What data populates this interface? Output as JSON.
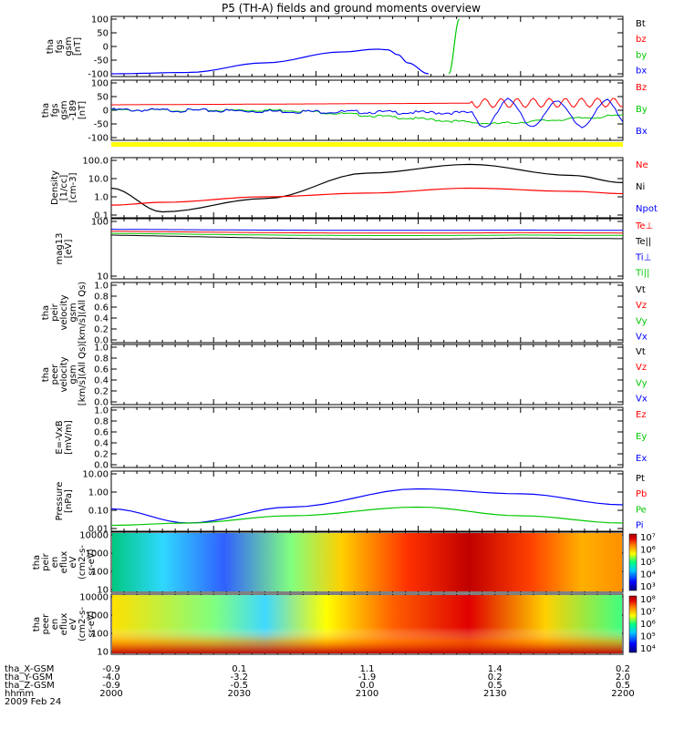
{
  "title": "P5 (TH-A) fields and ground moments overview",
  "date": "2009 Feb 24",
  "colorbar_stops": [
    "#000080",
    "#0000ff",
    "#00c8ff",
    "#00ff80",
    "#ffff00",
    "#ff8000",
    "#e00000",
    "#a00000"
  ],
  "panels": [
    {
      "id": "fgs",
      "ylabel": [
        "tha",
        "fgs",
        "gsm",
        "[nT]"
      ],
      "yticks": [
        "100",
        "50",
        "0",
        "-50",
        "-100"
      ],
      "legend": [
        {
          "t": "Bt",
          "c": "#000000"
        },
        {
          "t": "bz",
          "c": "#ff0000"
        },
        {
          "t": "by",
          "c": "#00c800"
        },
        {
          "t": "bx",
          "c": "#0000ff"
        }
      ]
    },
    {
      "id": "fgs2",
      "ylabel": [
        "tha",
        "fgs",
        "gsm",
        "-189",
        "[nT]"
      ],
      "yticks": [
        "100",
        "50",
        "0",
        "-50",
        "-100"
      ],
      "legend": [
        {
          "t": "Bz",
          "c": "#ff0000"
        },
        {
          "t": "By",
          "c": "#00c800"
        },
        {
          "t": "Bx",
          "c": "#0000ff"
        }
      ]
    },
    {
      "id": "density",
      "ylabel": [
        "Density",
        "[1/cc]",
        "[cm-3]"
      ],
      "yticks": [
        "100.0",
        "10.0",
        "1.0",
        "0.1"
      ],
      "legend": [
        {
          "t": "Ne",
          "c": "#ff0000"
        },
        {
          "t": "Ni",
          "c": "#000000"
        },
        {
          "t": "Npot",
          "c": "#0000ff"
        }
      ]
    },
    {
      "id": "temp",
      "ylabel": [
        "mag13",
        "[eV]"
      ],
      "yticks": [
        "100",
        "10"
      ],
      "legend": [
        {
          "t": "Te⊥",
          "c": "#ff0000"
        },
        {
          "t": "Te||",
          "c": "#000000"
        },
        {
          "t": "Ti⊥",
          "c": "#0000ff"
        },
        {
          "t": "Ti||",
          "c": "#00c800"
        }
      ]
    },
    {
      "id": "ve",
      "ylabel": [
        "tha",
        "peir",
        "velocity",
        "gsm",
        "[km/s](All Qs)"
      ],
      "yticks": [
        "1.0",
        "0.8",
        "0.6",
        "0.4",
        "0.2",
        "0.0"
      ],
      "legend": [
        {
          "t": "Vt",
          "c": "#000000"
        },
        {
          "t": "Vz",
          "c": "#ff0000"
        },
        {
          "t": "Vy",
          "c": "#00c800"
        },
        {
          "t": "Vx",
          "c": "#0000ff"
        }
      ]
    },
    {
      "id": "vi",
      "ylabel": [
        "tha",
        "peer",
        "velocity",
        "gsm",
        "[km/s](All Qs)"
      ],
      "yticks": [
        "1.0",
        "0.8",
        "0.6",
        "0.4",
        "0.2",
        "0.0"
      ],
      "legend": [
        {
          "t": "Vt",
          "c": "#000000"
        },
        {
          "t": "Vz",
          "c": "#ff0000"
        },
        {
          "t": "Vy",
          "c": "#00c800"
        },
        {
          "t": "Vx",
          "c": "#0000ff"
        }
      ]
    },
    {
      "id": "evxb",
      "ylabel": [
        "E=-VxB",
        "[mV/m]"
      ],
      "yticks": [
        "1.0",
        "0.8",
        "0.6",
        "0.4",
        "0.2",
        "0.0"
      ],
      "legend": [
        {
          "t": "Ez",
          "c": "#ff0000"
        },
        {
          "t": "Ey",
          "c": "#00c800"
        },
        {
          "t": "Ex",
          "c": "#0000ff"
        }
      ]
    },
    {
      "id": "pressure",
      "ylabel": [
        "Pressure",
        "[nPa]"
      ],
      "yticks": [
        "10.00",
        "1.00",
        "0.10",
        "0.01"
      ],
      "legend": [
        {
          "t": "Pt",
          "c": "#000000"
        },
        {
          "t": "Pb",
          "c": "#ff0000"
        },
        {
          "t": "Pe",
          "c": "#00c800"
        },
        {
          "t": "Pi",
          "c": "#0000ff"
        }
      ]
    },
    {
      "id": "ion_spec",
      "ylabel": [
        "tha",
        "peir",
        "en",
        "eflux",
        "eV",
        "(cm2-s-",
        "sr-eV)"
      ],
      "yticks": [
        "10000",
        "1000",
        "100",
        "10"
      ],
      "cbar": [
        "10⁷",
        "10⁶",
        "10⁵",
        "10⁴",
        "10³"
      ]
    },
    {
      "id": "ele_spec",
      "ylabel": [
        "tha",
        "peer",
        "en",
        "eflux",
        "eV",
        "(cm2-s-",
        "sr-eV)"
      ],
      "yticks": [
        "10000",
        "1000",
        "100",
        "10"
      ],
      "cbar": [
        "10⁸",
        "10⁷",
        "10⁶",
        "10⁵",
        "10⁴"
      ]
    }
  ],
  "ephemeris": {
    "row_labels": [
      "tha_X-GSM",
      "tha_Y-GSM",
      "tha_Z-GSM",
      "hhmm"
    ],
    "columns": [
      [
        "-0.9",
        "-4.0",
        "-0.9",
        "2000"
      ],
      [
        "0.1",
        "-3.2",
        "-0.5",
        "2030"
      ],
      [
        "1.1",
        "-1.9",
        "0.0",
        "2100"
      ],
      [
        "1.4",
        "0.2",
        "0.5",
        "2130"
      ],
      [
        "0.2",
        "2.0",
        "0.5",
        "2200"
      ]
    ]
  },
  "chart_data": [
    {
      "type": "line",
      "panel": "fgs",
      "x": [
        0,
        0.15,
        0.3,
        0.45,
        0.52,
        0.54,
        0.56,
        0.58,
        0.62,
        0.66,
        0.68,
        0.7
      ],
      "x_unit": "fraction of interval",
      "series": [
        {
          "name": "bx",
          "values": [
            -100,
            -95,
            -60,
            -20,
            -10,
            -12,
            -30,
            -60,
            -100,
            null,
            null,
            null
          ]
        },
        {
          "name": "by",
          "values": [
            null,
            null,
            null,
            null,
            null,
            null,
            null,
            null,
            null,
            -100,
            100,
            null
          ]
        }
      ],
      "ylim": [
        -100,
        100
      ]
    },
    {
      "type": "line",
      "panel": "density",
      "x": [
        0,
        0.1,
        0.3,
        0.5,
        0.7,
        0.9,
        1
      ],
      "series": [
        {
          "name": "Ni",
          "values": [
            3,
            0.15,
            0.8,
            20,
            60,
            15,
            6
          ]
        },
        {
          "name": "Ne",
          "values": [
            0.35,
            0.5,
            1,
            1.6,
            3,
            2,
            1.5
          ]
        }
      ],
      "ylim": [
        0.1,
        100
      ],
      "yscale": "log"
    },
    {
      "type": "line",
      "panel": "pressure",
      "x": [
        0,
        0.15,
        0.35,
        0.6,
        0.8,
        1
      ],
      "series": [
        {
          "name": "Pi",
          "values": [
            0.12,
            0.02,
            0.15,
            1.5,
            0.8,
            0.2
          ]
        },
        {
          "name": "Pe",
          "values": [
            0.015,
            0.02,
            0.05,
            0.15,
            0.05,
            0.02
          ]
        }
      ],
      "ylim": [
        0.01,
        10
      ],
      "yscale": "log"
    }
  ]
}
